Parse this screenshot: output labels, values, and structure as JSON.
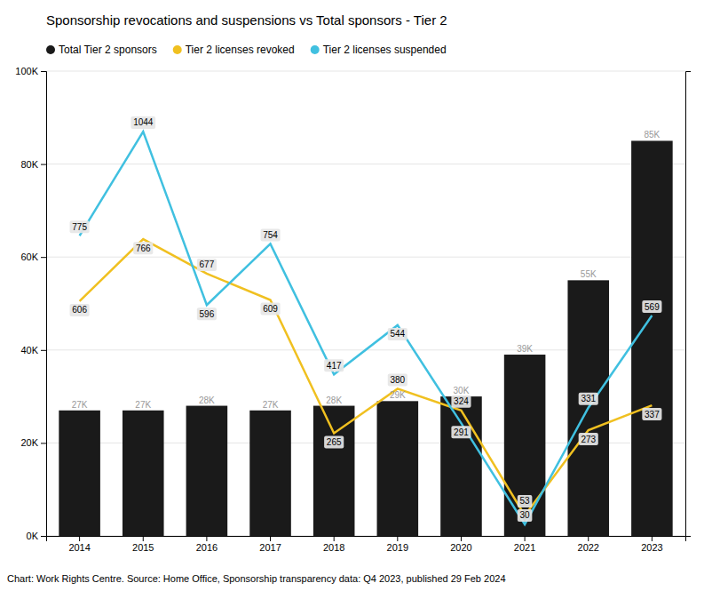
{
  "chart_data": {
    "type": "bar",
    "title": "Sponsorship revocations and suspensions vs Total sponsors - Tier 2",
    "caption": "Chart: Work Rights Centre. Source: Home Office, Sponsorship transparency data: Q4 2023, published 29 Feb 2024",
    "categories": [
      2014,
      2015,
      2016,
      2017,
      2018,
      2019,
      2020,
      2021,
      2022,
      2023
    ],
    "ylim": [
      0,
      100000
    ],
    "yticks": [
      {
        "value": 0,
        "label": "0K"
      },
      {
        "value": 20000,
        "label": "20K"
      },
      {
        "value": 40000,
        "label": "40K"
      },
      {
        "value": 60000,
        "label": "60K"
      },
      {
        "value": 80000,
        "label": "80K"
      },
      {
        "value": 100000,
        "label": "100K"
      }
    ],
    "y2lim": [
      0,
      1200
    ],
    "y2ticks": [],
    "grid": true,
    "legend": "top-left",
    "data_labels": true,
    "series": [
      {
        "name": "Total Tier 2 sponsors",
        "type": "bar",
        "color": "#1a1a1a",
        "values": [
          27000,
          27000,
          28000,
          27000,
          28000,
          29000,
          30000,
          39000,
          55000,
          85000
        ],
        "value_labels": [
          "27K",
          "27K",
          "28K",
          "27K",
          "28K",
          "29K",
          "30K",
          "39K",
          "55K",
          "85K"
        ]
      },
      {
        "name": "Tier 2 licenses revoked",
        "type": "line",
        "axis": "y2",
        "color": "#f0c020",
        "values": [
          606,
          766,
          677,
          609,
          265,
          380,
          324,
          53,
          273,
          337
        ]
      },
      {
        "name": "Tier 2 licenses suspended",
        "type": "line",
        "axis": "y2",
        "color": "#40c0e0",
        "values": [
          775,
          1044,
          596,
          754,
          417,
          544,
          291,
          30,
          331,
          569
        ]
      }
    ]
  }
}
